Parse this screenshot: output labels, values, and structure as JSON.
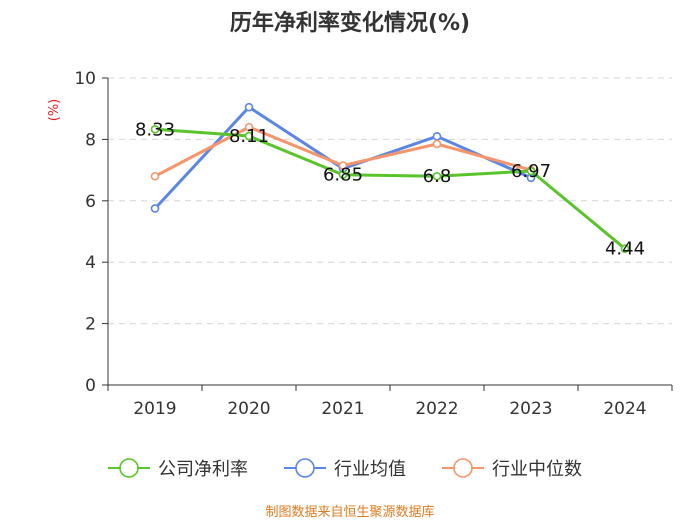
{
  "chart_data": {
    "type": "line",
    "title": "历年净利率变化情况(%)",
    "ylabel": "(%)",
    "xlabel": "",
    "categories": [
      "2019",
      "2020",
      "2021",
      "2022",
      "2023",
      "2024"
    ],
    "ylim": [
      0,
      10
    ],
    "yticks": [
      "0",
      "2",
      "4",
      "6",
      "8",
      "10"
    ],
    "grid": true,
    "legend_position": "bottom",
    "series": [
      {
        "name": "公司净利率",
        "color": "#5ac42b",
        "values": [
          8.33,
          8.11,
          6.85,
          6.8,
          6.97,
          4.44
        ],
        "labels": [
          "8.33",
          "8.11",
          "6.85",
          "6.8",
          "6.97",
          "4.44"
        ]
      },
      {
        "name": "行业均值",
        "color": "#5b86e5",
        "values": [
          5.75,
          9.05,
          7.05,
          8.1,
          6.75,
          null
        ]
      },
      {
        "name": "行业中位数",
        "color": "#f5956b",
        "values": [
          6.8,
          8.4,
          7.15,
          7.85,
          7.0,
          null
        ]
      }
    ],
    "source": "制图数据来自恒生聚源数据库"
  }
}
